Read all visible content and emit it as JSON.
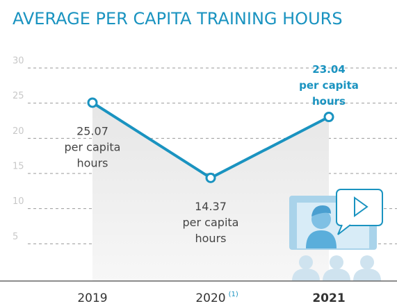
{
  "chart_data": {
    "type": "line",
    "title": "AVERAGE PER CAPITA TRAINING HOURS",
    "categories": [
      "2019",
      "2020",
      "2021"
    ],
    "category_notes": [
      null,
      "(1)",
      null
    ],
    "highlight_index": 2,
    "series": [
      {
        "name": "Average per capita training hours",
        "color": "#1a93c0",
        "values": [
          25.07,
          14.37,
          23.04
        ]
      }
    ],
    "data_label_unit": [
      "per capita",
      "hours"
    ],
    "ylim": [
      0,
      30
    ],
    "yticks": [
      5,
      10,
      15,
      20,
      25,
      30
    ],
    "grid": true
  }
}
